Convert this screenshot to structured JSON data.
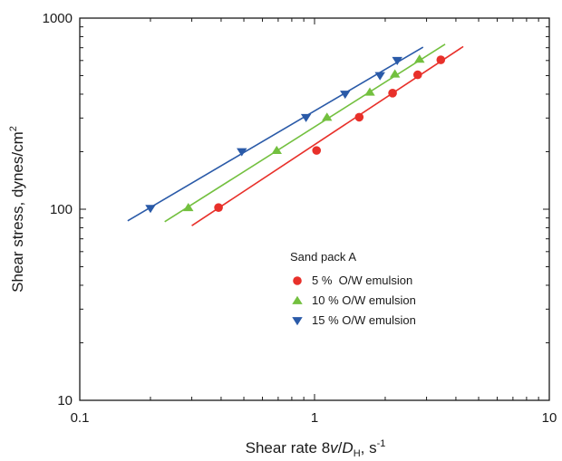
{
  "chart_data": {
    "type": "scatter",
    "x_scale": "log",
    "y_scale": "log",
    "xlim": [
      0.1,
      10
    ],
    "ylim": [
      10,
      1000
    ],
    "x_ticks": [
      {
        "value": 0.1,
        "label": "0.1"
      },
      {
        "value": 1,
        "label": "1"
      },
      {
        "value": 10,
        "label": "10"
      }
    ],
    "y_ticks": [
      {
        "value": 10,
        "label": "10"
      },
      {
        "value": 100,
        "label": "100"
      },
      {
        "value": 1000,
        "label": "1000"
      }
    ],
    "xlabel": {
      "pre": "Shear rate 8",
      "v": "v",
      "slash": "/",
      "d": "D",
      "sub": "H",
      "post": ", s",
      "sup": "-1"
    },
    "ylabel": {
      "main": "Shear stress, dynes/cm",
      "sup": "2"
    },
    "grid": false,
    "legend": {
      "title": "Sand pack A",
      "position": "center-right"
    },
    "series": [
      {
        "name": "5 %  O/W emulsion",
        "marker": "circle",
        "color": "#e8302a",
        "points": [
          [
            0.39,
            102
          ],
          [
            1.02,
            203
          ],
          [
            1.55,
            303
          ],
          [
            2.15,
            405
          ],
          [
            2.75,
            505
          ],
          [
            3.45,
            605
          ]
        ],
        "fit": [
          [
            0.3,
            82
          ],
          [
            4.3,
            710
          ]
        ]
      },
      {
        "name": "10 % O/W emulsion",
        "marker": "triangle-up",
        "color": "#73c03f",
        "points": [
          [
            0.29,
            102
          ],
          [
            0.69,
            203
          ],
          [
            1.13,
            303
          ],
          [
            1.72,
            410
          ],
          [
            2.2,
            510
          ],
          [
            2.8,
            610
          ]
        ],
        "fit": [
          [
            0.23,
            86
          ],
          [
            3.6,
            730
          ]
        ]
      },
      {
        "name": "15 % O/W emulsion",
        "marker": "triangle-down",
        "color": "#2a5aa8",
        "points": [
          [
            0.2,
            101
          ],
          [
            0.49,
            200
          ],
          [
            0.92,
            302
          ],
          [
            1.35,
            400
          ],
          [
            1.9,
            500
          ],
          [
            2.25,
            600
          ]
        ],
        "fit": [
          [
            0.16,
            87
          ],
          [
            2.9,
            705
          ]
        ]
      }
    ]
  }
}
